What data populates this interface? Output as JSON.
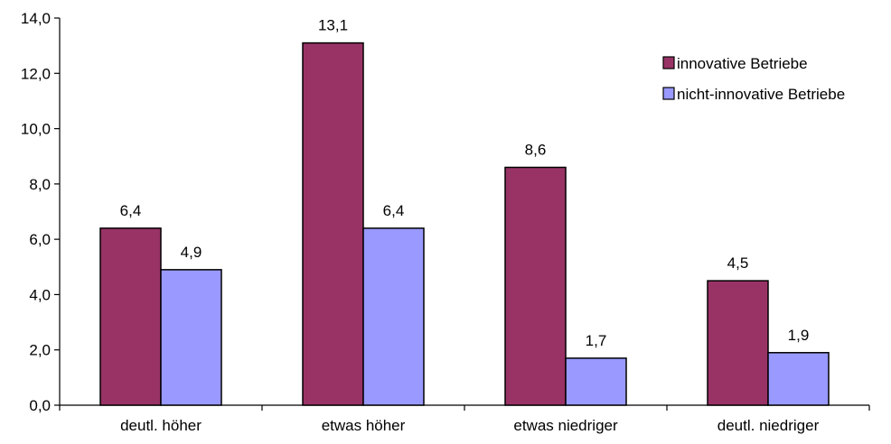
{
  "chart_data": {
    "type": "bar",
    "categories": [
      "deutl. höher",
      "etwas höher",
      "etwas niedriger",
      "deutl. niedriger"
    ],
    "series": [
      {
        "name": "innovative Betriebe",
        "color": "#993366",
        "values": [
          6.4,
          13.1,
          8.6,
          4.5
        ],
        "labels": [
          "6,4",
          "13,1",
          "8,6",
          "4,5"
        ]
      },
      {
        "name": "nicht-innovative Betriebe",
        "color": "#9999ff",
        "values": [
          4.9,
          6.4,
          1.7,
          1.9
        ],
        "labels": [
          "4,9",
          "6,4",
          "1,7",
          "1,9"
        ]
      }
    ],
    "yticks": [
      0,
      2,
      4,
      6,
      8,
      10,
      12,
      14
    ],
    "ytick_labels": [
      "0,0",
      "2,0",
      "4,0",
      "6,0",
      "8,0",
      "10,0",
      "12,0",
      "14,0"
    ],
    "ylim": [
      0,
      14
    ],
    "grid": false,
    "legend_position": "top-right"
  }
}
